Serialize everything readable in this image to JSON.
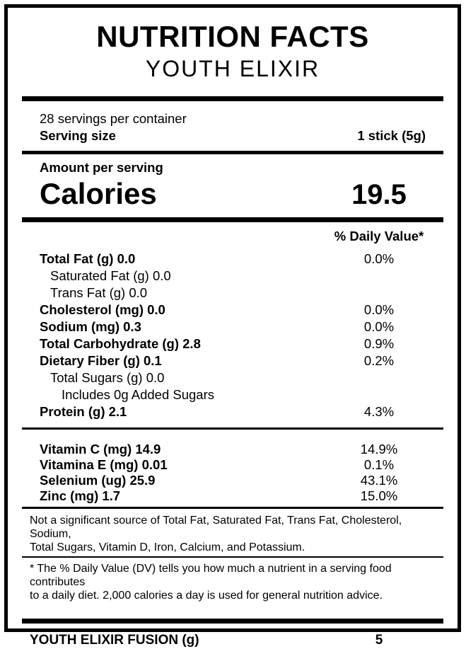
{
  "colors": {
    "background": "#ffffff",
    "ink": "#000000"
  },
  "header": {
    "title": "NUTRITION FACTS",
    "subtitle": "YOUTH ELIXIR"
  },
  "serving_info": {
    "servings_per_container": "28 servings per container",
    "serving_size_label": "Serving size",
    "serving_size_value": "1 stick (5g)"
  },
  "calories": {
    "section_label": "Amount per serving",
    "label": "Calories",
    "value": "19.5"
  },
  "daily_value_header": "% Daily Value*",
  "nutrients": [
    {
      "name": "Total Fat (g) 0.0",
      "dv": "0.0%"
    },
    {
      "name": "Saturated Fat (g) 0.0",
      "dv": ""
    },
    {
      "name": "Trans Fat (g) 0.0",
      "dv": ""
    },
    {
      "name": "Cholesterol (mg) 0.0",
      "dv": "0.0%"
    },
    {
      "name": "Sodium (mg) 0.3",
      "dv": "0.0%"
    },
    {
      "name": "Total Carbohydrate (g) 2.8",
      "dv": "0.9%"
    },
    {
      "name": "Dietary Fiber (g) 0.1",
      "dv": "0.2%"
    },
    {
      "name": "Total Sugars (g) 0.0",
      "dv": ""
    },
    {
      "name": "Includes 0g Added Sugars",
      "dv": ""
    },
    {
      "name": "Protein (g) 2.1",
      "dv": "4.3%"
    }
  ],
  "micronutrients": [
    {
      "name": "Vitamin C (mg) 14.9",
      "dv": "14.9%"
    },
    {
      "name": "Vitamina E (mg) 0.01",
      "dv": "0.1%"
    },
    {
      "name": "Selenium (ug) 25.9",
      "dv": "43.1%"
    },
    {
      "name": "Zinc (mg) 1.7",
      "dv": "15.0%"
    }
  ],
  "footnotes": {
    "not_significant_line1": "Not a significant source of Total Fat, Saturated Fat, Trans Fat, Cholesterol, Sodium,",
    "not_significant_line2": "Total Sugars, Vitamin D, Iron, Calcium, and Potassium.",
    "daily_value_line1": "* The % Daily Value (DV) tells you how much a nutrient in a serving food contributes",
    "daily_value_line2": "to a daily diet. 2,000 calories a day is used for general nutrition advice."
  },
  "custom_row": {
    "label": "YOUTH ELIXIR FUSION (g)",
    "value": "5"
  }
}
